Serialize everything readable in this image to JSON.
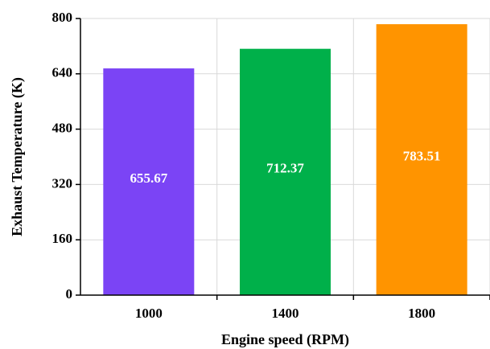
{
  "chart_data": {
    "type": "bar",
    "title": "",
    "xlabel": "Engine speed (RPM)",
    "ylabel": "Exhaust Temperature (K)",
    "categories": [
      "1000",
      "1400",
      "1800"
    ],
    "values": [
      655.67,
      712.37,
      783.51
    ],
    "data_labels": [
      "655.67",
      "712.37",
      "783.51"
    ],
    "colors": [
      "#7b44f5",
      "#00b04a",
      "#ff9400"
    ],
    "ylim": [
      0,
      800
    ],
    "yticks": [
      "0",
      "160",
      "320",
      "480",
      "640",
      "800"
    ],
    "grid": true,
    "legend": "none"
  }
}
